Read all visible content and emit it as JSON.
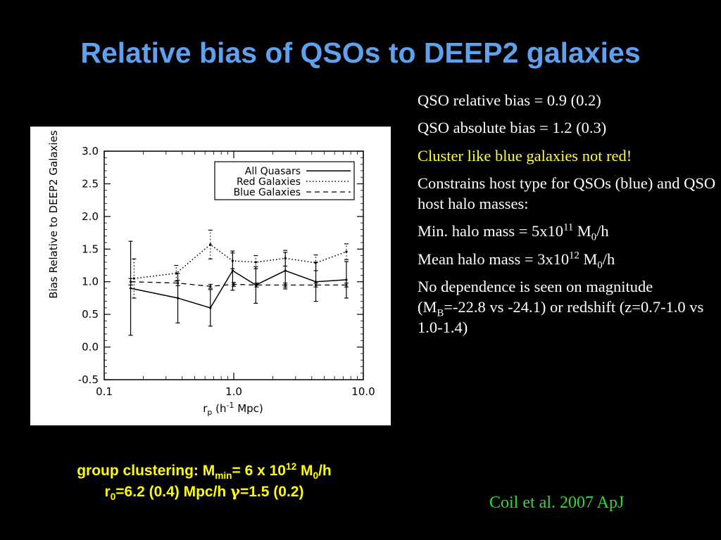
{
  "slide": {
    "title": "Relative bias of QSOs to DEEP2 galaxies",
    "bullets": {
      "rel_bias": "QSO relative bias = 0.9 (0.2)",
      "abs_bias": "QSO absolute bias = 1.2 (0.3)",
      "cluster": "Cluster like blue galaxies not red!",
      "constrains": "Constrains host type for QSOs (blue) and QSO host halo masses:",
      "min_halo_prefix": "Min. halo mass = 5x10",
      "min_halo_exp": "11",
      "min_halo_unit": " M",
      "min_halo_sub": "0",
      "min_halo_suffix": "/h",
      "mean_halo_prefix": "Mean halo mass = 3x10",
      "mean_halo_exp": "12",
      "mean_halo_unit": " M",
      "mean_halo_sub": "0",
      "mean_halo_suffix": "/h",
      "nodep_1": "No dependence is seen on magnitude (M",
      "nodep_sub": "B",
      "nodep_2": "=-22.8 vs -24.1) or redshift (z=0.7-1.0 vs 1.0-1.4)"
    },
    "caption": {
      "l1_a": "group clustering: M",
      "l1_sub": "min",
      "l1_b": "= 6 x 10",
      "l1_sup": "12",
      "l1_c": " M",
      "l1_sub2": "0",
      "l1_d": "/h",
      "l2_a": "r",
      "l2_sub": "0",
      "l2_b": "=6.2 (0.4) Mpc/h  ",
      "l2_gamma": "γ",
      "l2_c": "=1.5 (0.2)"
    },
    "citation": "Coil et al. 2007 ApJ",
    "colors": {
      "title": "#5fa0ef",
      "yellow": "#ffff33",
      "green": "#33dd33",
      "text": "#ffffff"
    }
  },
  "chart_data": {
    "type": "line",
    "xscale": "log",
    "xlim": [
      0.1,
      10.0
    ],
    "ylim": [
      -0.5,
      3.0
    ],
    "xlabel_main": "r",
    "xlabel_sub": "p",
    "xlabel_rest": " (h",
    "xlabel_sup": "-1",
    "xlabel_end": " Mpc)",
    "ylabel": "Bias Relative to DEEP2 Galaxies",
    "x_ticks": [
      "0.1",
      "1.0",
      "10.0"
    ],
    "y_ticks": [
      "-0.5",
      "0.0",
      "0.5",
      "1.0",
      "1.5",
      "2.0",
      "2.5",
      "3.0"
    ],
    "legend_position": "top-right",
    "series": [
      {
        "name": "All Quasars",
        "style": "solid",
        "x": [
          0.16,
          0.37,
          0.66,
          0.98,
          1.48,
          2.5,
          4.3,
          7.4
        ],
        "y": [
          0.9,
          0.75,
          0.6,
          1.17,
          0.95,
          1.17,
          1.0,
          1.03
        ],
        "err": [
          0.72,
          0.38,
          0.28,
          0.3,
          0.28,
          0.28,
          0.3,
          0.28
        ]
      },
      {
        "name": "Red Galaxies",
        "style": "dotted",
        "x": [
          0.17,
          0.36,
          0.66,
          0.98,
          1.48,
          2.5,
          4.3,
          7.4
        ],
        "y": [
          1.05,
          1.13,
          1.57,
          1.32,
          1.3,
          1.36,
          1.29,
          1.46
        ],
        "err": [
          0.3,
          0.12,
          0.22,
          0.12,
          0.1,
          0.12,
          0.12,
          0.12
        ]
      },
      {
        "name": "Blue Galaxies",
        "style": "dashed",
        "x": [
          0.16,
          0.37,
          0.66,
          1.0,
          1.5,
          2.5,
          4.3,
          7.4
        ],
        "y": [
          1.0,
          0.98,
          0.93,
          0.96,
          0.95,
          0.95,
          0.95,
          0.95
        ],
        "err": [
          0.05,
          0.04,
          0.03,
          0.03,
          0.03,
          0.03,
          0.03,
          0.03
        ]
      }
    ]
  }
}
